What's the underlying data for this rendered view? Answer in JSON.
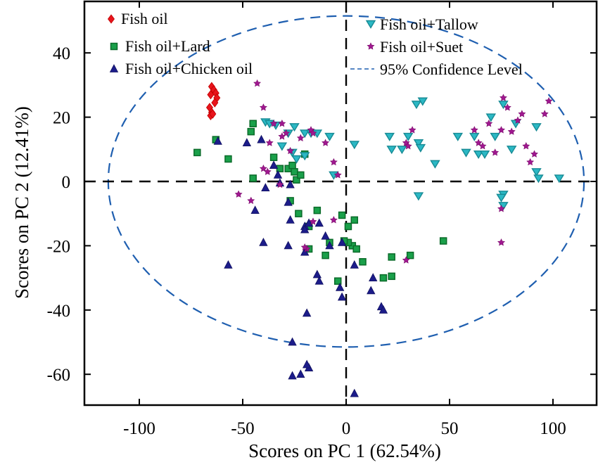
{
  "chart_data": {
    "type": "scatter",
    "title": "",
    "xlabel": "Scores on PC 1 (62.54%)",
    "ylabel": "Scores on PC 2 (12.41%)",
    "xlim": [
      -127,
      121
    ],
    "ylim": [
      -69,
      56
    ],
    "xticks": [
      -100,
      -50,
      0,
      50,
      100
    ],
    "yticks": [
      40,
      20,
      0,
      -20,
      -40,
      -60
    ],
    "xtick_labels": [
      "-100",
      "-50",
      "0",
      "50",
      "100"
    ],
    "ytick_labels": [
      "40",
      "20",
      "0",
      "-20",
      "-40",
      "-60"
    ],
    "grid": false,
    "legend_position": "top",
    "reference_lines": {
      "x": 0,
      "y": 0,
      "style": "dashed",
      "color": "#000000"
    },
    "confidence_ellipse": {
      "label": "95% Confidence Level",
      "center": [
        0,
        0
      ],
      "semi_axis_x": 115,
      "semi_axis_y": 51.5,
      "color": "#1f5fb0"
    },
    "series": [
      {
        "name": "Fish oil",
        "marker": "diamond",
        "color": "#e8141c",
        "edge": "#c00000",
        "points": [
          [
            -65,
            29.5
          ],
          [
            -64,
            28.5
          ],
          [
            -65.5,
            27
          ],
          [
            -63,
            27.5
          ],
          [
            -62.5,
            26
          ],
          [
            -63.5,
            24.5
          ],
          [
            -66,
            23
          ],
          [
            -65,
            21.5
          ],
          [
            -65.5,
            20.5
          ],
          [
            -64.5,
            21
          ]
        ]
      },
      {
        "name": "Fish oil+Lard",
        "marker": "square",
        "color": "#1aa04a",
        "edge": "#0b6b2a",
        "points": [
          [
            -72,
            9
          ],
          [
            -63,
            13
          ],
          [
            -57,
            7
          ],
          [
            -45,
            18
          ],
          [
            -46,
            15.5
          ],
          [
            -45,
            1
          ],
          [
            -35,
            7.5
          ],
          [
            -32,
            4
          ],
          [
            -28,
            4
          ],
          [
            -26,
            5
          ],
          [
            -25,
            3
          ],
          [
            -24,
            0.5
          ],
          [
            -22,
            2
          ],
          [
            -20,
            8.5
          ],
          [
            -27,
            -6
          ],
          [
            -23,
            -10
          ],
          [
            -14,
            -9
          ],
          [
            -18,
            -14
          ],
          [
            -8,
            -19
          ],
          [
            -2,
            -10.5
          ],
          [
            -18,
            -21
          ],
          [
            -10,
            -23
          ],
          [
            -4,
            -31
          ],
          [
            3,
            -20
          ],
          [
            1,
            -19
          ],
          [
            5,
            -21
          ],
          [
            -1,
            -18.5
          ],
          [
            8,
            -25
          ],
          [
            18,
            -30
          ],
          [
            22,
            -29.5
          ],
          [
            22,
            -23.5
          ],
          [
            31,
            -23
          ],
          [
            47,
            -18.5
          ],
          [
            4,
            -12
          ],
          [
            1,
            -14
          ]
        ]
      },
      {
        "name": "Fish oil+Chicken oil",
        "marker": "triangle-up",
        "color": "#1c1c8a",
        "edge": "#101060",
        "points": [
          [
            -62,
            12.5
          ],
          [
            -48,
            12
          ],
          [
            -41,
            13
          ],
          [
            -35,
            5
          ],
          [
            -33,
            2
          ],
          [
            -39,
            -2
          ],
          [
            -32,
            -0.5
          ],
          [
            -27,
            -1
          ],
          [
            -28,
            -6.5
          ],
          [
            -44,
            -9
          ],
          [
            -27,
            -12
          ],
          [
            -20,
            -14
          ],
          [
            -18,
            -13
          ],
          [
            -13,
            -13
          ],
          [
            -10,
            -17
          ],
          [
            -8,
            -20
          ],
          [
            -40,
            -19
          ],
          [
            -28,
            -20
          ],
          [
            -20,
            -22
          ],
          [
            -14,
            -29
          ],
          [
            -13,
            -31
          ],
          [
            -2,
            -19
          ],
          [
            4,
            -26
          ],
          [
            -3,
            -33
          ],
          [
            -2,
            -36
          ],
          [
            13,
            -30
          ],
          [
            12,
            -34
          ],
          [
            17,
            -39
          ],
          [
            18,
            -40
          ],
          [
            -19,
            -41
          ],
          [
            -26,
            -50
          ],
          [
            -57,
            -26
          ],
          [
            -18,
            -58
          ],
          [
            -19,
            -57
          ],
          [
            -22,
            -60
          ],
          [
            -26,
            -60.5
          ],
          [
            4,
            -66
          ],
          [
            -20,
            -15
          ]
        ]
      },
      {
        "name": "Fish oil+Tallow",
        "marker": "triangle-down",
        "color": "#2bb8c4",
        "edge": "#178a94",
        "points": [
          [
            -39,
            18.5
          ],
          [
            -37,
            18
          ],
          [
            -34,
            17.5
          ],
          [
            -31,
            11
          ],
          [
            -28,
            15
          ],
          [
            -26,
            9
          ],
          [
            -24,
            7
          ],
          [
            -20,
            8
          ],
          [
            -25,
            17
          ],
          [
            -20,
            15
          ],
          [
            -17,
            15
          ],
          [
            -14,
            15
          ],
          [
            -8,
            14
          ],
          [
            -6,
            2
          ],
          [
            4,
            11.5
          ],
          [
            21,
            14
          ],
          [
            22,
            10
          ],
          [
            27,
            10
          ],
          [
            30,
            14
          ],
          [
            34,
            24
          ],
          [
            35,
            12
          ],
          [
            36,
            10.5
          ],
          [
            37,
            25
          ],
          [
            43,
            5.5
          ],
          [
            35,
            -4.5
          ],
          [
            54,
            14
          ],
          [
            58,
            9
          ],
          [
            62,
            14
          ],
          [
            64,
            8.5
          ],
          [
            67,
            8.5
          ],
          [
            70,
            20
          ],
          [
            72,
            14
          ],
          [
            76,
            24
          ],
          [
            82,
            18
          ],
          [
            92,
            17
          ],
          [
            92,
            3
          ],
          [
            93,
            1
          ],
          [
            103,
            1
          ],
          [
            80,
            10
          ],
          [
            76,
            -4
          ],
          [
            76,
            -7.5
          ],
          [
            75,
            -5
          ]
        ]
      },
      {
        "name": "Fish oil+Suet",
        "marker": "star",
        "color": "#a01890",
        "edge": "#7a0a6a",
        "points": [
          [
            -43,
            30.5
          ],
          [
            -40,
            23
          ],
          [
            -37,
            12
          ],
          [
            -35,
            18
          ],
          [
            -31,
            18
          ],
          [
            -31,
            14
          ],
          [
            -29,
            15
          ],
          [
            -27,
            9.5
          ],
          [
            -22,
            13.5
          ],
          [
            -17,
            16
          ],
          [
            -16,
            15
          ],
          [
            -10,
            12
          ],
          [
            -6,
            6
          ],
          [
            -4,
            2
          ],
          [
            -40,
            4
          ],
          [
            -38,
            3
          ],
          [
            -32,
            -1
          ],
          [
            -52,
            -4
          ],
          [
            -46,
            -6
          ],
          [
            -16,
            -12.5
          ],
          [
            -19,
            -21
          ],
          [
            -20,
            -20.5
          ],
          [
            29,
            -24.5
          ],
          [
            29,
            12
          ],
          [
            30,
            11
          ],
          [
            32,
            16
          ],
          [
            62,
            16
          ],
          [
            64,
            12
          ],
          [
            66,
            11
          ],
          [
            72,
            9
          ],
          [
            69,
            18
          ],
          [
            75,
            16
          ],
          [
            76,
            26
          ],
          [
            78,
            23
          ],
          [
            80,
            15.5
          ],
          [
            83,
            19
          ],
          [
            85,
            21
          ],
          [
            87,
            11
          ],
          [
            89,
            6
          ],
          [
            91,
            8.5
          ],
          [
            96,
            21
          ],
          [
            98,
            25
          ],
          [
            75,
            -8.5
          ],
          [
            75,
            -19
          ],
          [
            -6,
            -12
          ]
        ]
      }
    ]
  }
}
